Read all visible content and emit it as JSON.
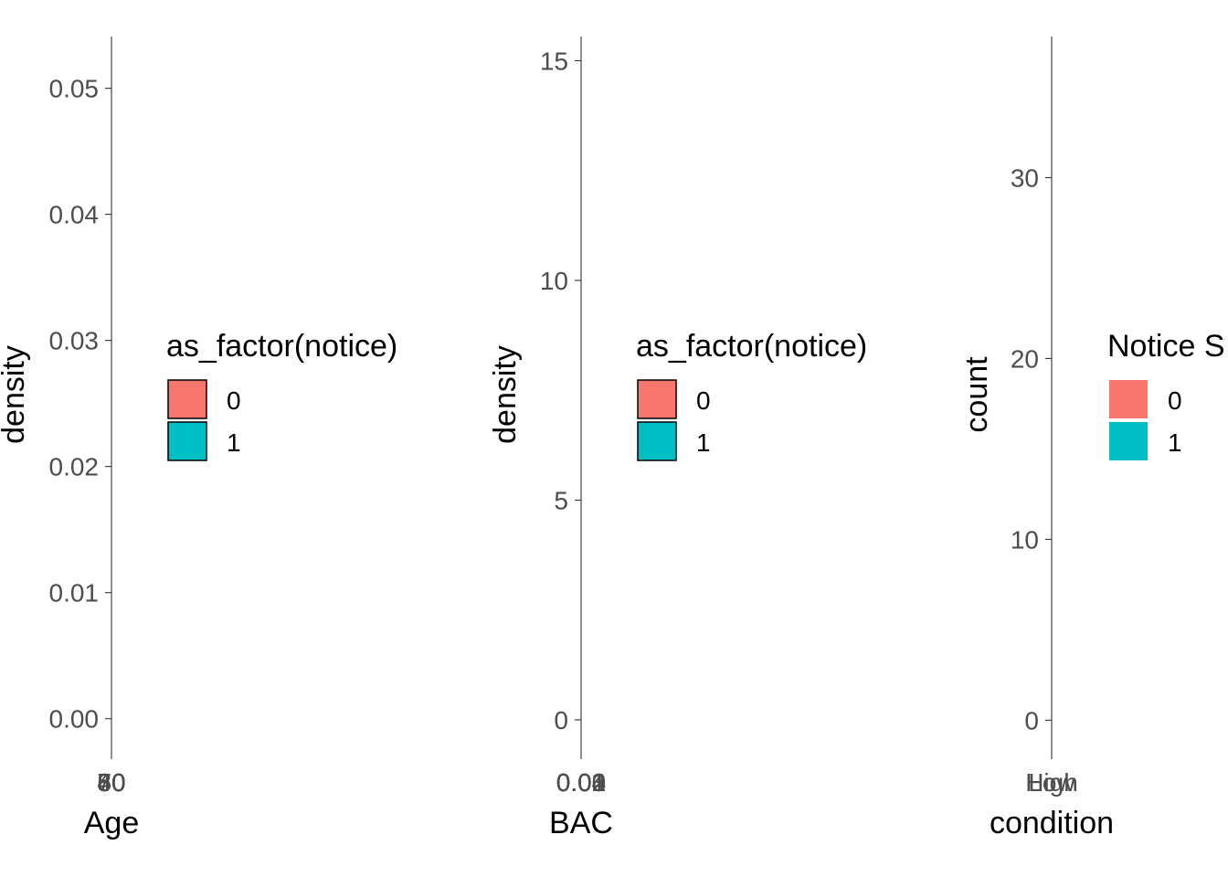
{
  "chart_data": [
    {
      "type": "area",
      "xlabel": "Age",
      "ylabel": "density",
      "x_tick_labels": [
        "40",
        "50",
        "60",
        "70",
        "80"
      ],
      "y_ticks": [
        0.0,
        0.01,
        0.02,
        0.03,
        0.04,
        0.05
      ],
      "y_tick_labels": [
        "0.00",
        "0.01",
        "0.02",
        "0.03",
        "0.04",
        "0.05"
      ],
      "ylim": [
        -0.0027,
        0.0541
      ],
      "legend": {
        "title": "as_factor(notice)",
        "entries": [
          {
            "label": "0",
            "color": "#F8766D"
          },
          {
            "label": "1",
            "color": "#00BFC4"
          }
        ],
        "outlined": true
      },
      "series": []
    },
    {
      "type": "area",
      "xlabel": "BAC",
      "ylabel": "density",
      "x_tick_labels": [
        "0.00",
        "0.01",
        "0.02",
        "0.03",
        "0.04"
      ],
      "y_ticks": [
        0,
        5,
        10,
        15
      ],
      "y_tick_labels": [
        "0",
        "5",
        "10",
        "15"
      ],
      "ylim": [
        -0.75,
        15.55
      ],
      "legend": {
        "title": "as_factor(notice)",
        "entries": [
          {
            "label": "0",
            "color": "#F8766D"
          },
          {
            "label": "1",
            "color": "#00BFC4"
          }
        ],
        "outlined": true
      },
      "series": []
    },
    {
      "type": "bar",
      "xlabel": "condition",
      "ylabel": "count",
      "x_tick_labels": [
        "High",
        "Low"
      ],
      "y_ticks": [
        0,
        10,
        20,
        30
      ],
      "y_tick_labels": [
        "0",
        "10",
        "20",
        "30"
      ],
      "ylim": [
        -1.8,
        37.8
      ],
      "legend": {
        "title": "Notice S",
        "entries": [
          {
            "label": "0",
            "color": "#F8766D"
          },
          {
            "label": "1",
            "color": "#00BFC4"
          }
        ],
        "outlined": false
      },
      "series": []
    }
  ]
}
